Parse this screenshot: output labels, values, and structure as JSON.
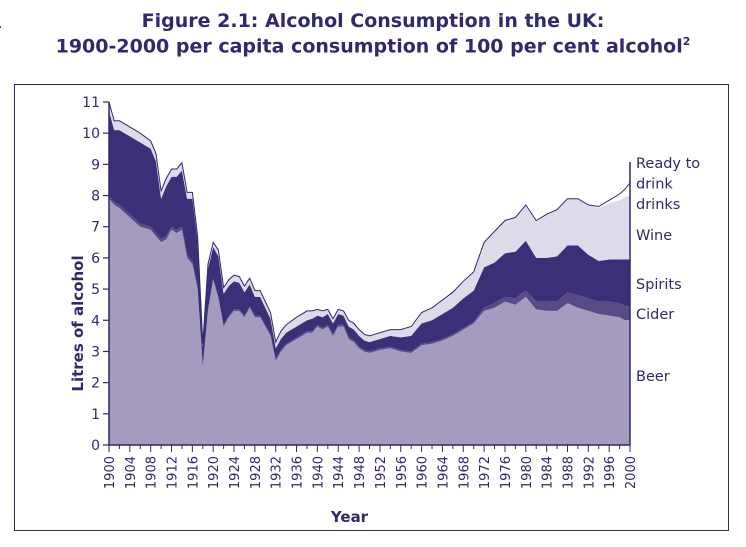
{
  "page": {
    "title_line1": "Figure 2.1: Alcohol Consumption in the UK:",
    "title_line2": "1900-2000 per capita consumption of 100 per cent alcohol",
    "title_superscript": "2"
  },
  "colors": {
    "text": "#2e2a6b",
    "beer": "#a49bbf",
    "cider": "#574a87",
    "spirits": "#3b2f78",
    "wine": "#dddaea",
    "rtd": "#ffffff",
    "outline": "#2e2a6b"
  },
  "chart_data": {
    "type": "area",
    "stacked": true,
    "title": "Figure 2.1: Alcohol Consumption in the UK: 1900-2000 per capita consumption of 100 per cent alcohol",
    "xlabel": "Year",
    "ylabel": "Litres of alcohol",
    "xlim": [
      1900,
      2000
    ],
    "ylim": [
      0,
      11
    ],
    "yticks": [
      "0",
      "1",
      "2",
      "3",
      "4",
      "5",
      "6",
      "7",
      "8",
      "9",
      "10",
      "11"
    ],
    "xticks": [
      "1900",
      "1904",
      "1908",
      "1912",
      "1916",
      "1920",
      "1924",
      "1928",
      "1932",
      "1936",
      "1940",
      "1944",
      "1948",
      "1952",
      "1956",
      "1960",
      "1964",
      "1968",
      "1972",
      "1976",
      "1980",
      "1984",
      "1988",
      "1992",
      "1996",
      "2000"
    ],
    "legend_placement": "right, labels beside series",
    "x": [
      1900,
      1901,
      1902,
      1904,
      1906,
      1908,
      1909,
      1910,
      1911,
      1912,
      1913,
      1914,
      1915,
      1916,
      1917,
      1918,
      1919,
      1920,
      1921,
      1922,
      1923,
      1924,
      1925,
      1926,
      1927,
      1928,
      1929,
      1930,
      1931,
      1932,
      1933,
      1934,
      1936,
      1938,
      1939,
      1940,
      1941,
      1942,
      1943,
      1944,
      1945,
      1946,
      1947,
      1948,
      1949,
      1950,
      1952,
      1954,
      1956,
      1958,
      1960,
      1962,
      1964,
      1966,
      1968,
      1970,
      1972,
      1974,
      1976,
      1978,
      1980,
      1982,
      1984,
      1986,
      1988,
      1990,
      1992,
      1994,
      1996,
      1998,
      1999,
      2000
    ],
    "series": [
      {
        "name": "Beer",
        "values": [
          7.9,
          7.7,
          7.6,
          7.3,
          7.0,
          6.9,
          6.7,
          6.5,
          6.6,
          6.9,
          6.8,
          6.9,
          6.0,
          5.8,
          5.0,
          2.5,
          4.3,
          5.3,
          4.7,
          3.8,
          4.1,
          4.3,
          4.3,
          4.1,
          4.4,
          4.1,
          4.1,
          3.8,
          3.5,
          2.7,
          3.0,
          3.2,
          3.4,
          3.6,
          3.6,
          3.8,
          3.7,
          3.8,
          3.5,
          3.8,
          3.8,
          3.4,
          3.3,
          3.1,
          3.0,
          2.95,
          3.05,
          3.1,
          3.0,
          2.95,
          3.2,
          3.25,
          3.35,
          3.5,
          3.7,
          3.9,
          4.3,
          4.4,
          4.6,
          4.5,
          4.75,
          4.35,
          4.3,
          4.3,
          4.55,
          4.4,
          4.3,
          4.2,
          4.15,
          4.1,
          4.0,
          4.0
        ]
      },
      {
        "name": "Cider",
        "values": [
          0.1,
          0.1,
          0.1,
          0.1,
          0.1,
          0.1,
          0.1,
          0.1,
          0.1,
          0.1,
          0.1,
          0.1,
          0.1,
          0.1,
          0.05,
          0.05,
          0.05,
          0.05,
          0.05,
          0.05,
          0.05,
          0.05,
          0.05,
          0.05,
          0.05,
          0.05,
          0.05,
          0.05,
          0.05,
          0.05,
          0.05,
          0.05,
          0.05,
          0.05,
          0.05,
          0.05,
          0.05,
          0.05,
          0.05,
          0.05,
          0.05,
          0.05,
          0.05,
          0.05,
          0.05,
          0.05,
          0.05,
          0.05,
          0.05,
          0.05,
          0.05,
          0.05,
          0.05,
          0.05,
          0.05,
          0.05,
          0.1,
          0.15,
          0.15,
          0.2,
          0.2,
          0.25,
          0.3,
          0.3,
          0.35,
          0.4,
          0.4,
          0.4,
          0.45,
          0.45,
          0.45,
          0.45
        ]
      },
      {
        "name": "Spirits",
        "values": [
          2.7,
          2.3,
          2.4,
          2.5,
          2.6,
          2.5,
          2.3,
          1.3,
          1.6,
          1.6,
          1.7,
          1.8,
          1.8,
          2.0,
          1.5,
          0.6,
          1.3,
          1.0,
          1.3,
          1.0,
          0.95,
          0.9,
          0.85,
          0.75,
          0.7,
          0.6,
          0.6,
          0.55,
          0.5,
          0.35,
          0.35,
          0.35,
          0.35,
          0.35,
          0.4,
          0.3,
          0.35,
          0.35,
          0.35,
          0.35,
          0.3,
          0.35,
          0.35,
          0.35,
          0.3,
          0.3,
          0.3,
          0.35,
          0.4,
          0.5,
          0.65,
          0.7,
          0.8,
          0.85,
          0.95,
          1.0,
          1.3,
          1.3,
          1.4,
          1.5,
          1.6,
          1.4,
          1.4,
          1.45,
          1.5,
          1.6,
          1.4,
          1.3,
          1.35,
          1.4,
          1.5,
          1.5
        ]
      },
      {
        "name": "Wine",
        "values": [
          0.3,
          0.3,
          0.3,
          0.3,
          0.3,
          0.25,
          0.25,
          0.25,
          0.25,
          0.25,
          0.25,
          0.25,
          0.2,
          0.2,
          0.15,
          0.1,
          0.15,
          0.15,
          0.2,
          0.2,
          0.2,
          0.2,
          0.2,
          0.2,
          0.2,
          0.2,
          0.2,
          0.2,
          0.2,
          0.2,
          0.25,
          0.25,
          0.3,
          0.3,
          0.25,
          0.2,
          0.2,
          0.15,
          0.15,
          0.15,
          0.15,
          0.2,
          0.2,
          0.2,
          0.2,
          0.2,
          0.2,
          0.2,
          0.25,
          0.3,
          0.35,
          0.4,
          0.45,
          0.5,
          0.55,
          0.6,
          0.8,
          1.0,
          1.05,
          1.1,
          1.15,
          1.2,
          1.4,
          1.5,
          1.5,
          1.5,
          1.6,
          1.7,
          1.8,
          1.9,
          2.0,
          2.05
        ]
      },
      {
        "name": "Ready to drink drinks",
        "values": [
          0,
          0,
          0,
          0,
          0,
          0,
          0,
          0,
          0,
          0,
          0,
          0,
          0,
          0,
          0,
          0,
          0,
          0,
          0,
          0,
          0,
          0,
          0,
          0,
          0,
          0,
          0,
          0,
          0,
          0,
          0,
          0,
          0,
          0,
          0,
          0,
          0,
          0,
          0,
          0,
          0,
          0,
          0,
          0,
          0,
          0,
          0,
          0,
          0,
          0,
          0,
          0,
          0,
          0,
          0,
          0,
          0,
          0,
          0,
          0,
          0,
          0,
          0,
          0,
          0,
          0,
          0,
          0.05,
          0.1,
          0.2,
          0.25,
          0.4
        ]
      }
    ]
  },
  "series_labels": {
    "rtd": [
      "Ready to",
      "drink",
      "drinks"
    ],
    "wine": "Wine",
    "spirits": "Spirits",
    "cider": "Cider",
    "beer": "Beer"
  },
  "partial_char": "."
}
